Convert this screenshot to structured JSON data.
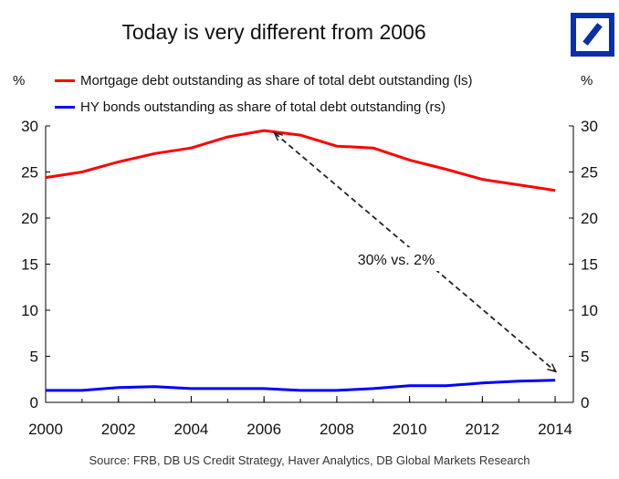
{
  "chart_data": {
    "type": "line",
    "title": "Today is very different from 2006",
    "left_axis_label": "%",
    "right_axis_label": "%",
    "x_ticks": [
      "2000",
      "2002",
      "2004",
      "2006",
      "2008",
      "2010",
      "2012",
      "2014"
    ],
    "xlim": [
      2000,
      2014.5
    ],
    "ylim_left": [
      0,
      30
    ],
    "ylim_right": [
      0,
      30
    ],
    "y_ticks": [
      "0",
      "5",
      "10",
      "15",
      "20",
      "25",
      "30"
    ],
    "series": [
      {
        "name": "Mortgage debt outstanding as share of total debt outstanding (ls)",
        "color": "#ff0000",
        "axis": "left",
        "x": [
          2000,
          2001,
          2002,
          2003,
          2004,
          2005,
          2006,
          2007,
          2008,
          2009,
          2010,
          2011,
          2012,
          2013,
          2014
        ],
        "values": [
          24.4,
          25.0,
          26.1,
          27.0,
          27.6,
          28.8,
          29.5,
          29.0,
          27.8,
          27.6,
          26.3,
          25.3,
          24.2,
          23.6,
          23.0
        ]
      },
      {
        "name": "HY bonds outstanding as share of total debt outstanding (rs)",
        "color": "#0000ff",
        "axis": "right",
        "x": [
          2000,
          2001,
          2002,
          2003,
          2004,
          2005,
          2006,
          2007,
          2008,
          2009,
          2010,
          2011,
          2012,
          2013,
          2014
        ],
        "values": [
          1.3,
          1.3,
          1.6,
          1.7,
          1.5,
          1.5,
          1.5,
          1.3,
          1.3,
          1.5,
          1.8,
          1.8,
          2.1,
          2.3,
          2.4
        ]
      }
    ],
    "annotation": {
      "text": "30% vs. 2%",
      "arrow_from_x": 2006.3,
      "arrow_from_y": 29.2,
      "arrow_to_x": 2014,
      "arrow_to_y": 2.4
    },
    "source": "Source: FRB, DB US Credit Strategy, Haver  Analytics, DB Global Markets Research"
  }
}
